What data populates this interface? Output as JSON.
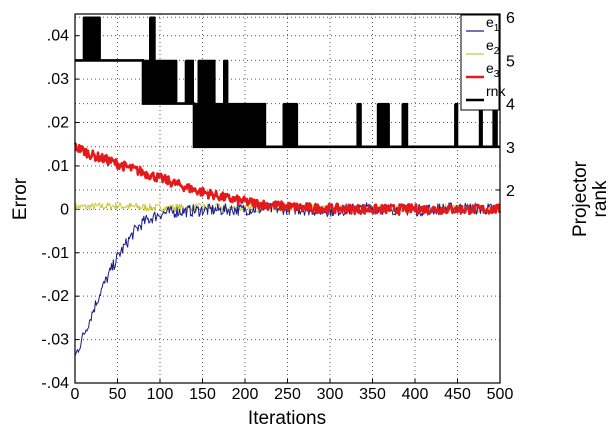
{
  "chart_data": {
    "type": "line",
    "xlabel": "Iterations",
    "ylabel": "Error",
    "y2label_lines": [
      "Projector",
      "rank"
    ],
    "xlim": [
      0,
      500
    ],
    "ylim": [
      -0.04,
      0.045
    ],
    "y2lim": [
      1,
      6
    ],
    "xticks": [
      0,
      50,
      100,
      150,
      200,
      250,
      300,
      350,
      400,
      450,
      500
    ],
    "xtick_labels": [
      "0",
      "50",
      "100",
      "150",
      "200",
      "250",
      "300",
      "350",
      "400",
      "450",
      "500"
    ],
    "yticks": [
      -0.04,
      -0.03,
      -0.02,
      -0.01,
      0,
      0.01,
      0.02,
      0.03,
      0.04
    ],
    "ytick_labels": [
      "-.04",
      "-.03",
      "-.02",
      "-.01",
      "0",
      ".01",
      ".02",
      ".03",
      ".04"
    ],
    "y2ticks": [
      2,
      3,
      4,
      5,
      6
    ],
    "y2tick_labels": [
      "2",
      "3",
      "4",
      "5",
      "6"
    ],
    "grid": "dotted",
    "legend_position": "top-right",
    "series": [
      {
        "name": "e",
        "subscript": "1",
        "axis": "left",
        "color": "#1c1c8c",
        "points": [
          [
            0,
            -0.034
          ],
          [
            10,
            -0.029
          ],
          [
            20,
            -0.024
          ],
          [
            30,
            -0.019
          ],
          [
            40,
            -0.015
          ],
          [
            50,
            -0.011
          ],
          [
            60,
            -0.008
          ],
          [
            70,
            -0.005
          ],
          [
            80,
            -0.003
          ],
          [
            90,
            -0.002
          ],
          [
            100,
            -0.001
          ],
          [
            120,
            -0.0005
          ],
          [
            150,
            -0.0002
          ],
          [
            200,
            0.0
          ],
          [
            250,
            0.0002
          ],
          [
            300,
            -0.0003
          ],
          [
            350,
            0.0003
          ],
          [
            400,
            -0.0002
          ],
          [
            450,
            0.0003
          ],
          [
            500,
            0.0
          ]
        ]
      },
      {
        "name": "e",
        "subscript": "2",
        "axis": "left",
        "color": "#c8c83c",
        "points": [
          [
            0,
            0.0005
          ],
          [
            50,
            0.0008
          ],
          [
            100,
            0.0003
          ],
          [
            150,
            0.0005
          ],
          [
            200,
            0.0002
          ],
          [
            250,
            0.0004
          ],
          [
            300,
            0.0001
          ],
          [
            350,
            0.0003
          ],
          [
            400,
            0.0002
          ],
          [
            450,
            0.0003
          ],
          [
            500,
            0.0001
          ]
        ]
      },
      {
        "name": "e",
        "subscript": "3",
        "axis": "left",
        "color": "#e41a1a",
        "points": [
          [
            0,
            0.0145
          ],
          [
            20,
            0.0125
          ],
          [
            40,
            0.0112
          ],
          [
            60,
            0.0098
          ],
          [
            80,
            0.0085
          ],
          [
            100,
            0.0072
          ],
          [
            120,
            0.0058
          ],
          [
            140,
            0.0045
          ],
          [
            160,
            0.0035
          ],
          [
            180,
            0.0025
          ],
          [
            200,
            0.0018
          ],
          [
            220,
            0.0012
          ],
          [
            240,
            0.0008
          ],
          [
            260,
            0.0005
          ],
          [
            280,
            0.0003
          ],
          [
            300,
            0.0002
          ],
          [
            350,
            0.0
          ],
          [
            400,
            0.0001
          ],
          [
            450,
            0.0
          ],
          [
            500,
            0.0
          ]
        ]
      },
      {
        "name": "rnk",
        "axis": "right",
        "color": "#000000",
        "steps": [
          [
            0,
            5
          ],
          [
            80,
            4
          ],
          [
            140,
            3
          ],
          [
            500,
            3
          ]
        ],
        "spikes": [
          {
            "x": [
              10,
              30
            ],
            "level": 6
          },
          {
            "x": [
              88,
              94
            ],
            "level": 6
          },
          {
            "x": [
              82,
              120
            ],
            "level": 5
          },
          {
            "x": [
              130,
              140
            ],
            "level": 5
          },
          {
            "x": [
              145,
              165
            ],
            "level": 5
          },
          {
            "x": [
              175,
              180
            ],
            "level": 5
          },
          {
            "x": [
              140,
              225
            ],
            "level": 4
          },
          {
            "x": [
              245,
              262
            ],
            "level": 4
          },
          {
            "x": [
              332,
              337
            ],
            "level": 4
          },
          {
            "x": [
              356,
              370
            ],
            "level": 4
          },
          {
            "x": [
              385,
              392
            ],
            "level": 4
          },
          {
            "x": [
              447,
              451
            ],
            "level": 4
          },
          {
            "x": [
              476,
              480
            ],
            "level": 4
          },
          {
            "x": [
              492,
              497
            ],
            "level": 4
          }
        ]
      }
    ]
  }
}
